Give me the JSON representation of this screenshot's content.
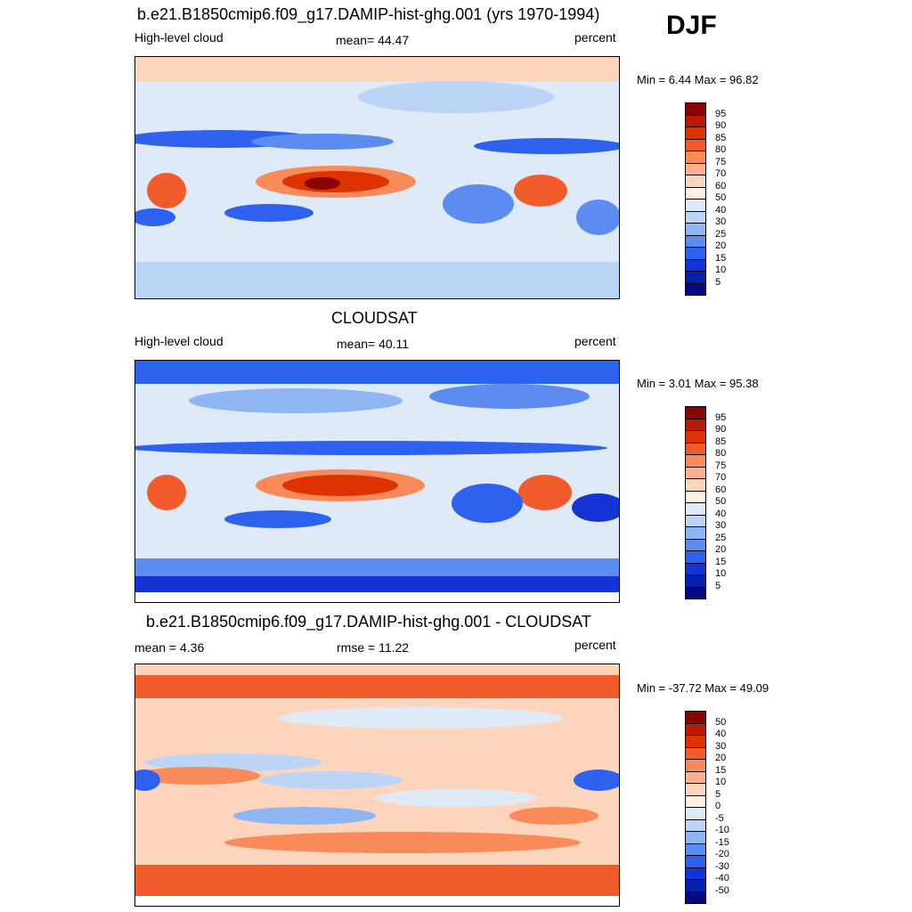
{
  "season": "DJF",
  "panels": [
    {
      "title": "b.e21.B1850cmip6.f09_g17.DAMIP-hist-ghg.001 (yrs 1970-1994)",
      "left_label": "High-level cloud",
      "center_label": "mean=  44.47",
      "right_label": "percent",
      "minmax": "Min =   6.44 Max =  96.82",
      "colorbar": {
        "ticks": [
          "95",
          "90",
          "85",
          "80",
          "75",
          "70",
          "60",
          "50",
          "40",
          "30",
          "25",
          "20",
          "15",
          "10",
          "5"
        ],
        "colors": [
          "#8b0000",
          "#b81b00",
          "#dd3300",
          "#f25c2c",
          "#f98a5a",
          "#fbb090",
          "#fdd5bd",
          "#fff0e4",
          "#dfeaf8",
          "#bcd5f7",
          "#8fb5f2",
          "#5c8cf0",
          "#2f61ef",
          "#1434d6",
          "#0620ab",
          "#010a84"
        ]
      }
    },
    {
      "title": "CLOUDSAT",
      "left_label": "High-level cloud",
      "center_label": "mean=  40.11",
      "right_label": "percent",
      "minmax": "Min =   3.01 Max =  95.38",
      "colorbar": {
        "ticks": [
          "95",
          "90",
          "85",
          "80",
          "75",
          "70",
          "60",
          "50",
          "40",
          "30",
          "25",
          "20",
          "15",
          "10",
          "5"
        ],
        "colors": [
          "#8b0000",
          "#b81b00",
          "#dd3300",
          "#f25c2c",
          "#f98a5a",
          "#fbb090",
          "#fdd5bd",
          "#fff0e4",
          "#dfeaf8",
          "#bcd5f7",
          "#8fb5f2",
          "#5c8cf0",
          "#2f61ef",
          "#1434d6",
          "#0620ab",
          "#010a84"
        ]
      }
    },
    {
      "title": "b.e21.B1850cmip6.f09_g17.DAMIP-hist-ghg.001 - CLOUDSAT",
      "left_label": "mean =   4.36",
      "center_label": "rmse =  11.22",
      "right_label": "percent",
      "minmax": "Min = -37.72 Max =  49.09",
      "colorbar": {
        "ticks": [
          "50",
          "40",
          "30",
          "20",
          "15",
          "10",
          "5",
          "0",
          "-5",
          "-10",
          "-15",
          "-20",
          "-30",
          "-40",
          "-50"
        ],
        "colors": [
          "#8b0000",
          "#b81b00",
          "#dd3300",
          "#f25c2c",
          "#f98a5a",
          "#fbb090",
          "#fdd5bd",
          "#fff0e4",
          "#dfeaf8",
          "#bcd5f7",
          "#8fb5f2",
          "#5c8cf0",
          "#2f61ef",
          "#1434d6",
          "#0620ab",
          "#010a84"
        ]
      }
    }
  ]
}
